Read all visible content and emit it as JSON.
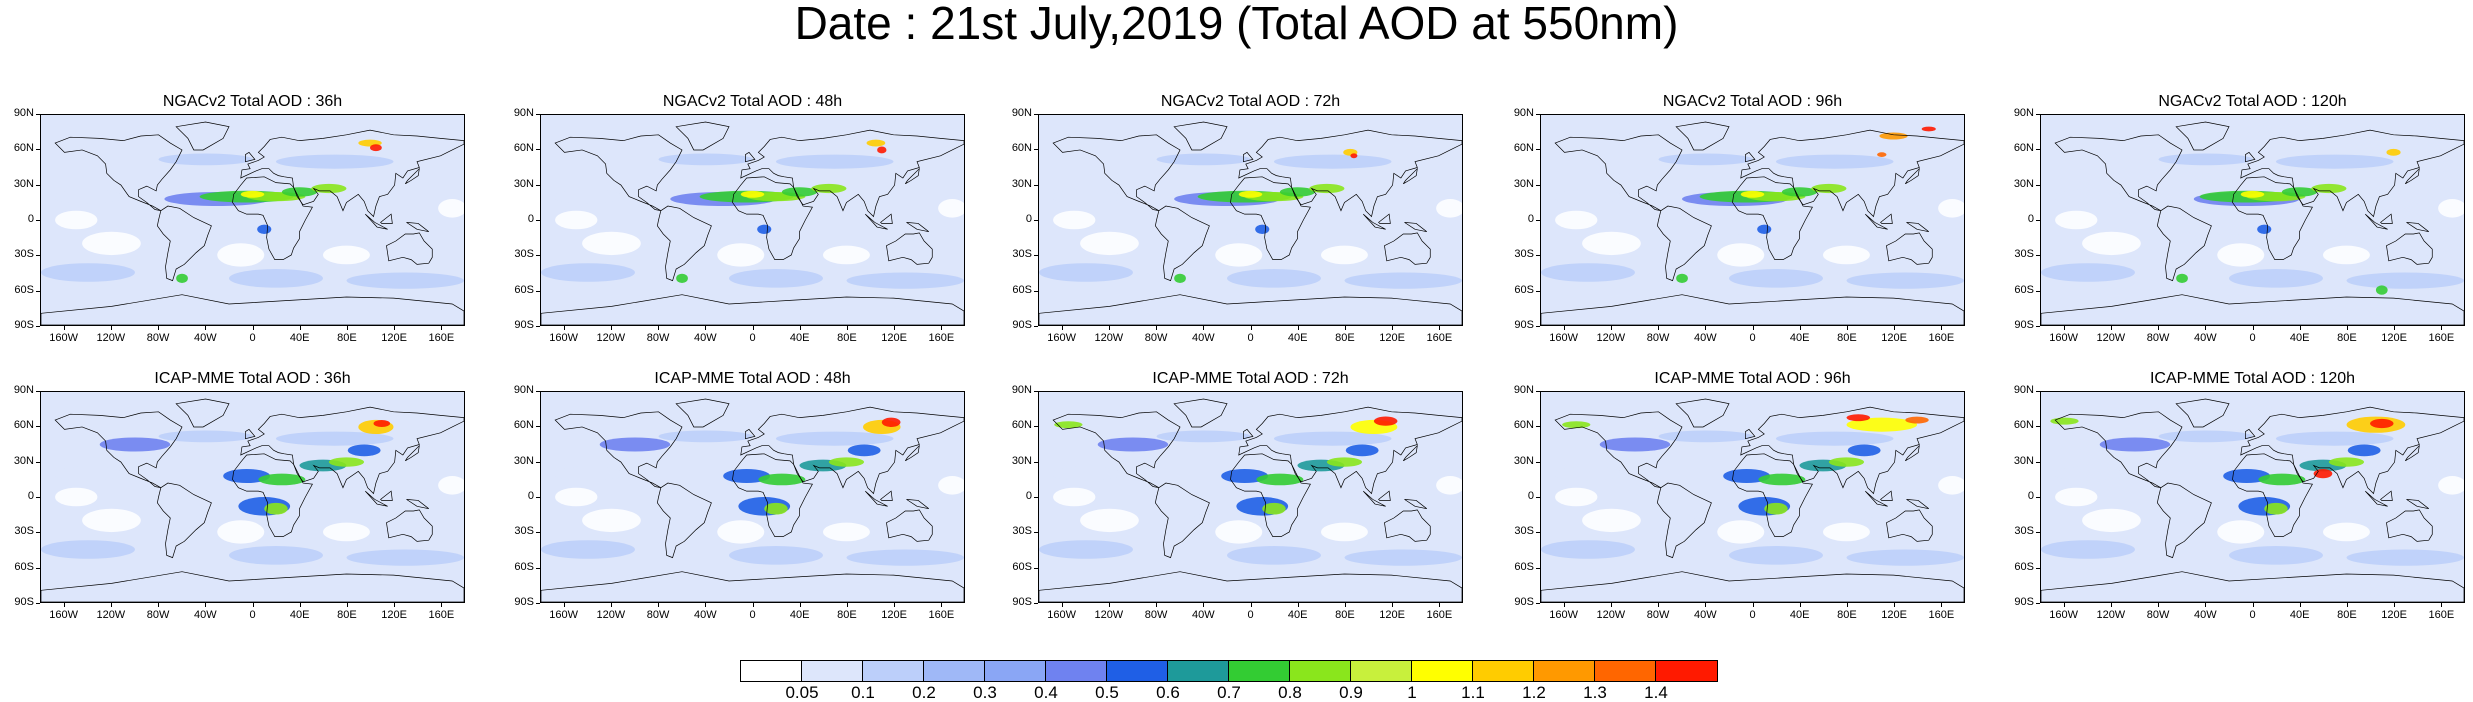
{
  "title": "Date : 21st July,2019 (Total AOD at 550nm)",
  "panels": [
    {
      "title": "NGACv2 Total AOD : 36h"
    },
    {
      "title": "NGACv2 Total AOD : 48h"
    },
    {
      "title": "NGACv2 Total AOD : 72h"
    },
    {
      "title": "NGACv2 Total AOD : 96h"
    },
    {
      "title": "NGACv2 Total AOD : 120h"
    },
    {
      "title": "ICAP-MME Total AOD : 36h"
    },
    {
      "title": "ICAP-MME Total AOD : 48h"
    },
    {
      "title": "ICAP-MME Total AOD : 72h"
    },
    {
      "title": "ICAP-MME Total AOD : 96h"
    },
    {
      "title": "ICAP-MME Total AOD : 120h"
    }
  ],
  "lat_labels": [
    "90N",
    "60N",
    "30N",
    "0",
    "30S",
    "60S",
    "90S"
  ],
  "lon_labels": [
    "160W",
    "120W",
    "80W",
    "40W",
    "0",
    "40E",
    "80E",
    "120E",
    "160E"
  ],
  "colorbar": {
    "labels": [
      "0.05",
      "0.1",
      "0.2",
      "0.3",
      "0.4",
      "0.5",
      "0.6",
      "0.7",
      "0.8",
      "0.9",
      "1",
      "1.1",
      "1.2",
      "1.3",
      "1.4"
    ],
    "colors": [
      "#ffffff",
      "#dde6fb",
      "#bccffa",
      "#9fb8f7",
      "#8aa6f5",
      "#6f82f0",
      "#1f5fe6",
      "#1e9a9a",
      "#33cc33",
      "#8ae61c",
      "#c8f03c",
      "#ffff00",
      "#ffcc00",
      "#ff9900",
      "#ff6600",
      "#ff1a00"
    ]
  }
}
